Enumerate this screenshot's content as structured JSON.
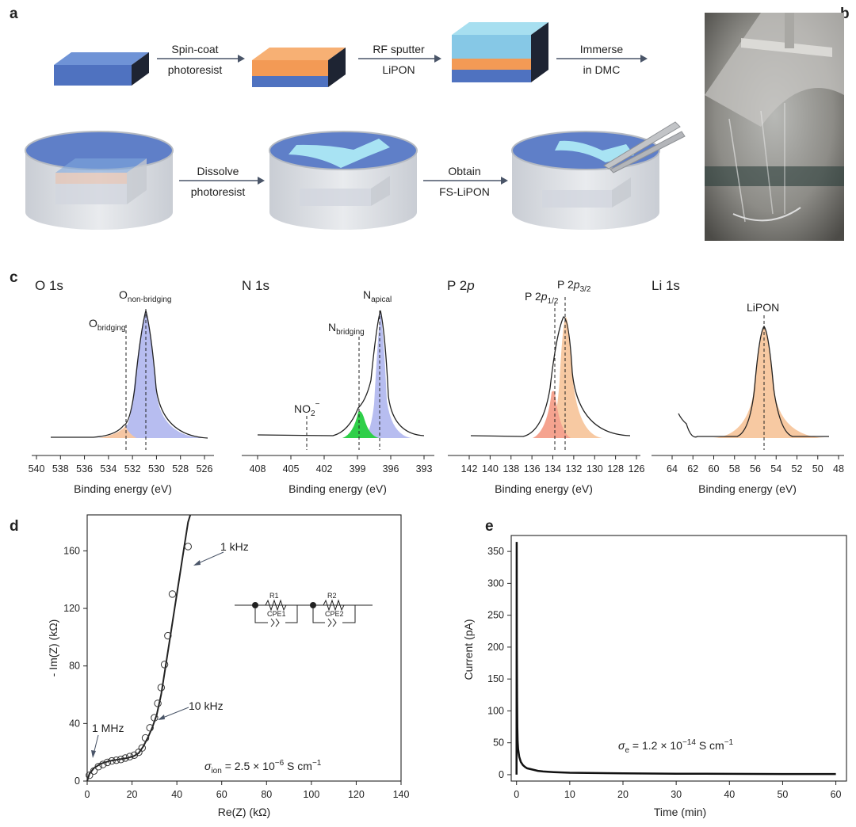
{
  "panels": {
    "a": "a",
    "b": "b",
    "c": "c",
    "d": "d",
    "e": "e"
  },
  "process": {
    "step1_line1": "Spin-coat",
    "step1_line2": "photoresist",
    "step2_line1": "RF sputter",
    "step2_line2": "LiPON",
    "step3_line1": "Immerse",
    "step3_line2": "in DMC",
    "step4_line1": "Dissolve",
    "step4_line2": "photoresist",
    "step5_line1": "Obtain",
    "step5_line2": "FS-LiPON"
  },
  "xps": {
    "o1s": {
      "title": "O 1s",
      "peak1": "O",
      "peak1_sub": "non-bridging",
      "peak2": "O",
      "peak2_sub": "bridging",
      "ticks": [
        "540",
        "538",
        "536",
        "534",
        "532",
        "530",
        "528",
        "526"
      ]
    },
    "n1s": {
      "title": "N 1s",
      "peak1": "N",
      "peak1_sub": "apical",
      "peak2": "N",
      "peak2_sub": "bridging",
      "peak3": "NO",
      "peak3_sub": "2",
      "peak3_sup": "−",
      "ticks": [
        "408",
        "405",
        "402",
        "399",
        "396",
        "393"
      ]
    },
    "p2p": {
      "title_main": "P 2",
      "title_it": "p",
      "peak1": "P 2",
      "peak1_it": "p",
      "peak1_sub": "3/2",
      "peak2": "P 2",
      "peak2_it": "p",
      "peak2_sub": "1/2",
      "ticks": [
        "142",
        "140",
        "138",
        "136",
        "134",
        "132",
        "130",
        "128",
        "126"
      ]
    },
    "li1s": {
      "title": "Li 1s",
      "peak1": "LiPON",
      "ticks": [
        "64",
        "62",
        "60",
        "58",
        "56",
        "54",
        "52",
        "50",
        "48"
      ]
    },
    "xlabel": "Binding energy (eV)"
  },
  "chart_data": [
    {
      "type": "scatter",
      "panel": "d",
      "xlabel": "Re(Z) (kΩ)",
      "ylabel": "- Im(Z) (kΩ)",
      "xlim": [
        0,
        140
      ],
      "ylim": [
        0,
        185
      ],
      "xticks": [
        "0",
        "20",
        "40",
        "60",
        "80",
        "100",
        "120",
        "140"
      ],
      "yticks": [
        "0",
        "40",
        "80",
        "120",
        "160"
      ],
      "series": [
        {
          "name": "data",
          "x": [
            1,
            3,
            5,
            7,
            9,
            11,
            13,
            15,
            17,
            19,
            21,
            23,
            24.5,
            26,
            28,
            30,
            31.5,
            33,
            34.5,
            36,
            38,
            45
          ],
          "y": [
            4,
            7,
            10,
            11.5,
            13,
            14,
            14.5,
            15,
            16,
            17,
            18,
            20,
            23,
            30,
            37,
            44,
            54,
            65,
            81,
            101,
            130,
            163
          ]
        }
      ],
      "annotations": {
        "a1": "1 kHz",
        "a2": "10 kHz",
        "a3": "1 MHz",
        "sigma": "σ",
        "sigma_sub": "ion",
        "sigma_val": " = 2.5 × 10",
        "sigma_exp": "−6",
        "sigma_unit": " S cm",
        "sigma_unit_exp": "−1"
      },
      "circuit": {
        "r1": "R1",
        "c1": "CPE1",
        "r2": "R2",
        "c2": "CPE2"
      }
    },
    {
      "type": "line",
      "panel": "e",
      "xlabel": "Time (min)",
      "ylabel": "Current (pA)",
      "xlim": [
        -1,
        62
      ],
      "ylim": [
        -10,
        375
      ],
      "xticks": [
        "0",
        "10",
        "20",
        "30",
        "40",
        "50",
        "60"
      ],
      "yticks": [
        "0",
        "50",
        "100",
        "150",
        "200",
        "250",
        "300",
        "350"
      ],
      "series": [
        {
          "name": "current",
          "x": [
            0,
            0.03,
            0.06,
            0.1,
            0.15,
            0.2,
            0.3,
            0.5,
            0.8,
            1.2,
            1.6,
            2,
            3,
            4,
            5,
            7,
            10,
            15,
            20,
            30,
            40,
            50,
            60
          ],
          "y": [
            0,
            365,
            200,
            120,
            75,
            52,
            40,
            28,
            20,
            15,
            12,
            10,
            8,
            6,
            5,
            4,
            3,
            2.5,
            2,
            1.6,
            1.3,
            1.1,
            1
          ]
        }
      ],
      "annotations": {
        "sigma": "σ",
        "sigma_sub": "e",
        "sigma_val": " = 1.2 × 10",
        "sigma_exp": "−14",
        "sigma_unit": " S cm",
        "sigma_unit_exp": "−1"
      }
    }
  ]
}
